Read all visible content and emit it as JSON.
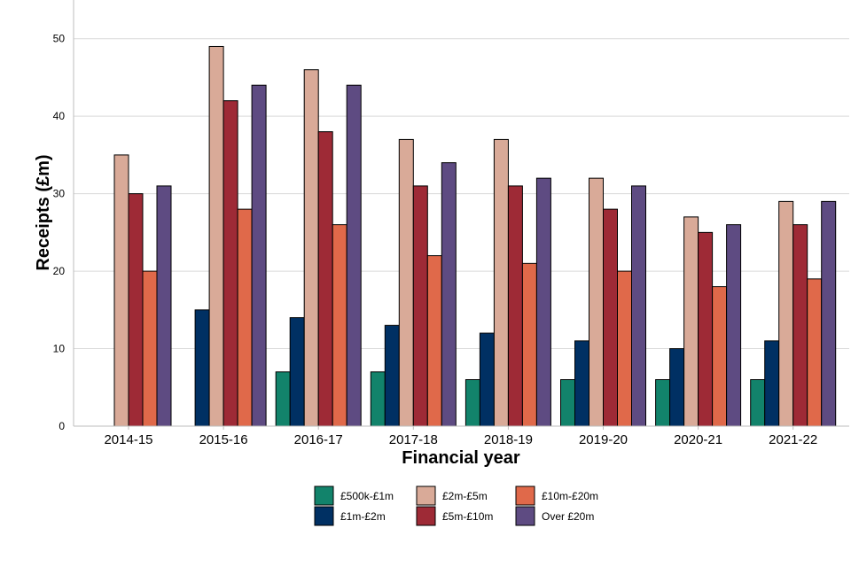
{
  "chart_data": {
    "type": "bar",
    "title": "",
    "xlabel": "Financial year",
    "ylabel": "Receipts (£m)",
    "ylim": [
      0,
      55
    ],
    "yticks": [
      0,
      10,
      20,
      30,
      40,
      50
    ],
    "grid": "horizontal",
    "legend_position": "bottom",
    "categories": [
      "2014-15",
      "2015-16",
      "2016-17",
      "2017-18",
      "2018-19",
      "2019-20",
      "2020-21",
      "2021-22"
    ],
    "series": [
      {
        "name": "£500k-£1m",
        "color": "#12836b",
        "values": [
          null,
          null,
          7,
          7,
          6,
          6,
          6,
          6
        ]
      },
      {
        "name": "£1m-£2m",
        "color": "#003063",
        "values": [
          null,
          15,
          14,
          13,
          12,
          11,
          10,
          11
        ]
      },
      {
        "name": "£2m-£5m",
        "color": "#d9aa98",
        "values": [
          35,
          49,
          46,
          37,
          37,
          32,
          27,
          29
        ]
      },
      {
        "name": "£5m-£10m",
        "color": "#9e2a36",
        "values": [
          30,
          42,
          38,
          31,
          31,
          28,
          25,
          26
        ]
      },
      {
        "name": "£10m-£20m",
        "color": "#e0694a",
        "values": [
          20,
          28,
          26,
          22,
          21,
          20,
          18,
          19
        ]
      },
      {
        "name": "Over £20m",
        "color": "#5e4b82",
        "values": [
          31,
          44,
          44,
          34,
          32,
          31,
          26,
          29
        ]
      }
    ]
  }
}
